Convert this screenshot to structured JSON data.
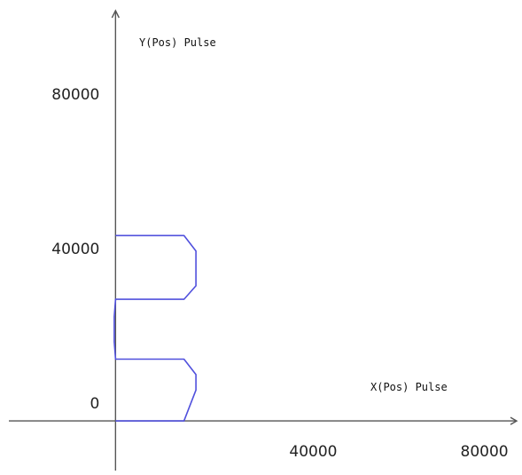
{
  "chart_data": {
    "type": "line",
    "xlabel": "X(Pos) Pulse",
    "ylabel": "Y(Pos) Pulse",
    "x_ticks": [
      {
        "value": 40000,
        "label": "40000"
      },
      {
        "value": 80000,
        "label": "80000"
      }
    ],
    "y_ticks": [
      {
        "value": 0,
        "label": "0"
      },
      {
        "value": 40000,
        "label": "40000"
      },
      {
        "value": 80000,
        "label": "80000"
      }
    ],
    "xlim": [
      -27000,
      95000
    ],
    "ylim": [
      -14000,
      109000
    ],
    "grid": false,
    "legend": "none",
    "series": [
      {
        "color": "#5050dd",
        "points": [
          [
            0,
            0
          ],
          [
            16000,
            0
          ],
          [
            18800,
            8000
          ],
          [
            18800,
            12000
          ],
          [
            16000,
            16000
          ],
          [
            0,
            16000
          ],
          [
            -300,
            20500
          ],
          [
            -300,
            27000
          ],
          [
            0,
            31500
          ],
          [
            16000,
            31500
          ],
          [
            18800,
            35000
          ],
          [
            18800,
            44000
          ],
          [
            16000,
            48000
          ],
          [
            0,
            48000
          ]
        ]
      }
    ]
  }
}
